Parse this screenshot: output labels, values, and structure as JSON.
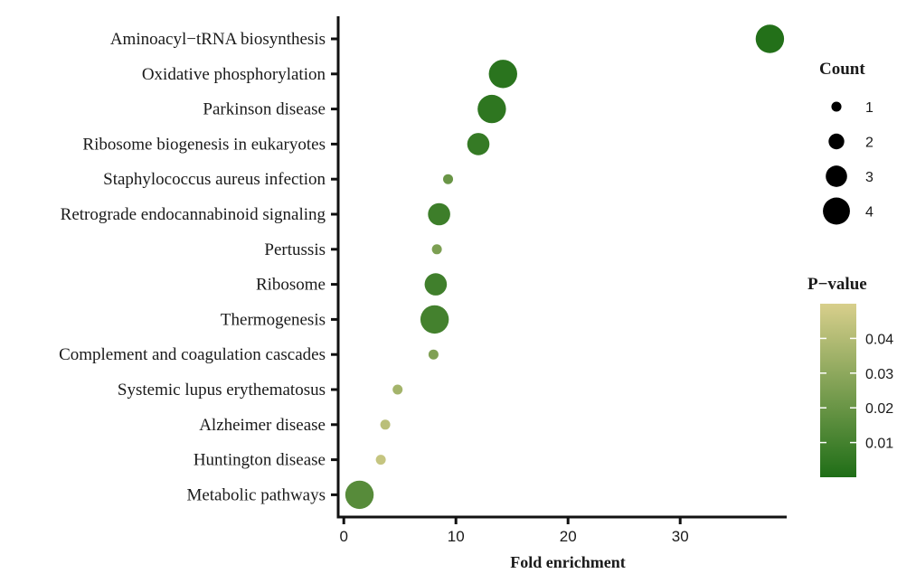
{
  "chart_data": {
    "type": "scatter",
    "xlabel": "Fold enrichment",
    "ylabel": "",
    "title": "",
    "xlim": [
      -0.5,
      39.5
    ],
    "x_ticks": [
      0,
      10,
      20,
      30
    ],
    "grid": false,
    "categories": [
      "Aminoacyl−tRNA biosynthesis",
      "Oxidative phosphorylation",
      "Parkinson disease",
      "Ribosome biogenesis in eukaryotes",
      "Staphylococcus aureus infection",
      "Retrograde endocannabinoid signaling",
      "Pertussis",
      "Ribosome",
      "Thermogenesis",
      "Complement and coagulation cascades",
      "Systemic lupus erythematosus",
      "Alzheimer disease",
      "Huntington disease",
      "Metabolic pathways"
    ],
    "points": [
      {
        "category": "Aminoacyl−tRNA biosynthesis",
        "fold_enrichment": 38.0,
        "count": 4,
        "p_value": 0.001
      },
      {
        "category": "Oxidative phosphorylation",
        "fold_enrichment": 14.2,
        "count": 4,
        "p_value": 0.003
      },
      {
        "category": "Parkinson disease",
        "fold_enrichment": 13.2,
        "count": 4,
        "p_value": 0.004
      },
      {
        "category": "Ribosome biogenesis in eukaryotes",
        "fold_enrichment": 12.0,
        "count": 3,
        "p_value": 0.006
      },
      {
        "category": "Staphylococcus aureus infection",
        "fold_enrichment": 9.3,
        "count": 1,
        "p_value": 0.02
      },
      {
        "category": "Retrograde endocannabinoid signaling",
        "fold_enrichment": 8.5,
        "count": 3,
        "p_value": 0.008
      },
      {
        "category": "Pertussis",
        "fold_enrichment": 8.3,
        "count": 1,
        "p_value": 0.025
      },
      {
        "category": "Ribosome",
        "fold_enrichment": 8.2,
        "count": 3,
        "p_value": 0.009
      },
      {
        "category": "Thermogenesis",
        "fold_enrichment": 8.1,
        "count": 4,
        "p_value": 0.01
      },
      {
        "category": "Complement and coagulation cascades",
        "fold_enrichment": 8.0,
        "count": 1,
        "p_value": 0.026
      },
      {
        "category": "Systemic lupus erythematosus",
        "fold_enrichment": 4.8,
        "count": 1,
        "p_value": 0.036
      },
      {
        "category": "Alzheimer disease",
        "fold_enrichment": 3.7,
        "count": 1,
        "p_value": 0.042
      },
      {
        "category": "Huntington disease",
        "fold_enrichment": 3.3,
        "count": 1,
        "p_value": 0.045
      },
      {
        "category": "Metabolic pathways",
        "fold_enrichment": 1.4,
        "count": 4,
        "p_value": 0.015
      }
    ],
    "size_legend": {
      "title": "Count",
      "values": [
        1,
        2,
        3,
        4
      ],
      "position": "top-right"
    },
    "color_legend": {
      "title": "P−value",
      "ticks": [
        0.01,
        0.02,
        0.03,
        0.04
      ],
      "tick_labels": [
        "0.01",
        "0.02",
        "0.03",
        "0.04"
      ],
      "range": [
        0.0,
        0.05
      ],
      "color_low": "#1f6e17",
      "color_high": "#d8cf8c",
      "position": "right"
    }
  }
}
